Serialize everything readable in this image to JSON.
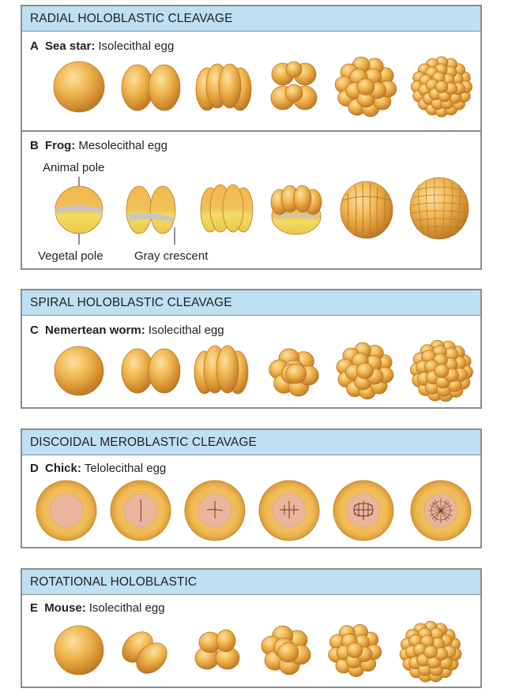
{
  "colors": {
    "header_bg": "#bfdff2",
    "border": "#8a8c8e",
    "cell_light": "#f5c565",
    "cell_mid": "#e6a43a",
    "cell_dark": "#b9782a",
    "yolk": "#f4dc5e",
    "gray_crescent": "#c9c6bd",
    "blastodisc": "#eab59a"
  },
  "panels": [
    {
      "id": "radial",
      "header": "RADIAL HOLOBLASTIC CLEAVAGE",
      "sections": [
        {
          "letter": "A",
          "organism": "Sea star:",
          "egg": "Isolecithal egg",
          "stages": [
            "1-cell",
            "2-cell",
            "4-cell",
            "8-cell",
            "16-cell",
            "32-cell"
          ]
        },
        {
          "letter": "B",
          "organism": "Frog:",
          "egg": "Mesolecithal egg",
          "stages": [
            "1-cell",
            "2-cell",
            "4-cell",
            "8-cell",
            "16-cell",
            "blastula"
          ],
          "annotations": {
            "animal_pole": "Animal pole",
            "vegetal_pole": "Vegetal pole",
            "gray_crescent": "Gray crescent"
          }
        }
      ]
    },
    {
      "id": "spiral",
      "header": "SPIRAL HOLOBLASTIC CLEAVAGE",
      "sections": [
        {
          "letter": "C",
          "organism": "Nemertean worm:",
          "egg": "Isolecithal egg",
          "stages": [
            "1-cell",
            "2-cell",
            "4-cell",
            "8-cell",
            "16-cell",
            "32-cell"
          ]
        }
      ]
    },
    {
      "id": "discoidal",
      "header": "DISCOIDAL MEROBLASTIC CLEAVAGE",
      "sections": [
        {
          "letter": "D",
          "organism": "Chick:",
          "egg": "Telolecithal egg",
          "stages": [
            "blastodisc",
            "first furrow",
            "second furrow",
            "third furrow",
            "fourth furrow",
            "blastoderm"
          ]
        }
      ]
    },
    {
      "id": "rotational",
      "header": "ROTATIONAL HOLOBLASTIC",
      "sections": [
        {
          "letter": "E",
          "organism": "Mouse:",
          "egg": "Isolecithal egg",
          "stages": [
            "1-cell",
            "2-cell",
            "4-cell",
            "8-cell",
            "16-cell",
            "morula"
          ]
        }
      ]
    }
  ]
}
